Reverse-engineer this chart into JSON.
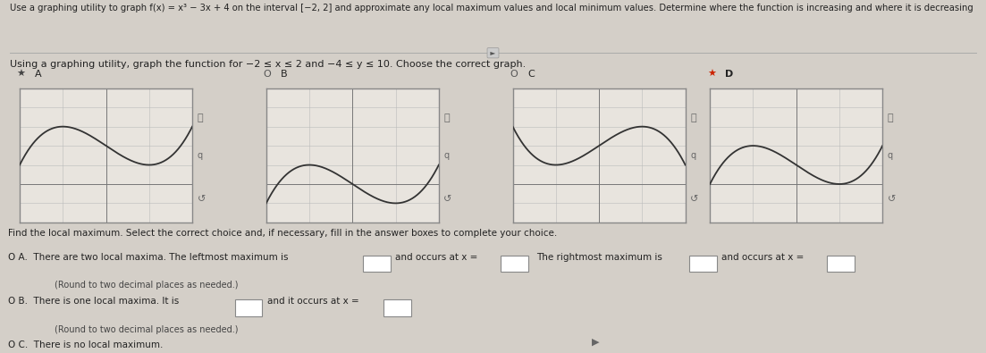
{
  "title_text": "Use a graphing utility to graph f(x) = x³ − 3x + 4 on the interval [−2, 2] and approximate any local maximum values and local minimum values. Determine where the function is increasing and where it is decreasing",
  "subtitle_text": "Using a graphing utility, graph the function for −2 ≤ x ≤ 2 and −4 ≤ y ≤ 10. Choose the correct graph.",
  "bg_color": "#d4cfc8",
  "graph_bg": "#e8e4de",
  "graph_border": "#888888",
  "grid_color": "#bbbbbb",
  "curve_color": "#333333",
  "xlim": [
    -2,
    2
  ],
  "ylim": [
    -4,
    10
  ],
  "q2_title": "Find the local maximum. Select the correct choice and, if necessary, fill in the answer boxes to complete your choice.",
  "choice_a_text": "O A.  There are two local maxima. The leftmost maximum is",
  "choice_a_mid1": "and occurs at x =",
  "choice_a_mid2": "The rightmost maximum is",
  "choice_a_mid3": "and occurs at x =",
  "choice_a_sub": "(Round to two decimal places as needed.)",
  "choice_b_text": "O B.  There is one local maxima. It is",
  "choice_b_mid": "and it occurs at x =",
  "choice_b_sub": "(Round to two decimal places as needed.)",
  "choice_c_text": "O C.  There is no local maximum.",
  "label_a": "A",
  "label_b": "B",
  "label_c": "C",
  "label_d": "D",
  "star_color": "#cc2200",
  "radio_color": "#555555",
  "text_color": "#222222",
  "subtext_color": "#444444",
  "box_color": "#ffffff",
  "box_edge": "#888888"
}
